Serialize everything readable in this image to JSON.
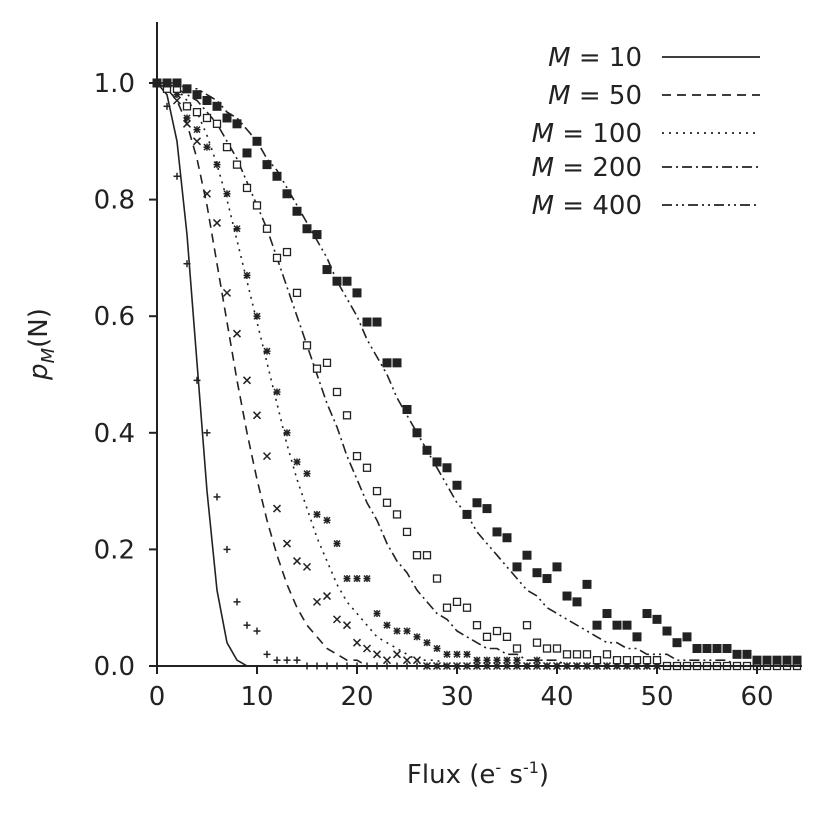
{
  "chart_data": {
    "type": "line",
    "xlabel": "Flux (e",
    "xlabel_sup1": "-",
    "xlabel_mid": " s",
    "xlabel_sup2": "-1",
    "xlabel_end": ")",
    "ylabel_p": "p",
    "ylabel_sub": "M",
    "ylabel_arg": "(N)",
    "xlim": [
      -1,
      64
    ],
    "ylim": [
      0,
      1.1
    ],
    "xticks": [
      0,
      10,
      20,
      30,
      40,
      50,
      60
    ],
    "yticks": [
      "0.0",
      "0.2",
      "0.4",
      "0.6",
      "0.8",
      "1.0"
    ],
    "legend_position": "top-right",
    "x": [
      0,
      1,
      2,
      3,
      4,
      5,
      6,
      7,
      8,
      9,
      10,
      11,
      12,
      13,
      14,
      15,
      16,
      17,
      18,
      19,
      20,
      21,
      22,
      23,
      24,
      25,
      26,
      27,
      28,
      29,
      30,
      31,
      32,
      33,
      34,
      35,
      36,
      37,
      38,
      39,
      40,
      41,
      42,
      43,
      44,
      45,
      46,
      47,
      48,
      49,
      50,
      51,
      52,
      53,
      54,
      55,
      56,
      57,
      58,
      59,
      60,
      61,
      62,
      63,
      64
    ],
    "series": [
      {
        "name": "M = 10",
        "legend_var": "M",
        "legend_rest": " = 10",
        "line_style": "solid",
        "marker": "plus",
        "curve": [
          1.0,
          0.98,
          0.9,
          0.74,
          0.52,
          0.3,
          0.13,
          0.04,
          0.01,
          0.0,
          0.0,
          0.0,
          0.0,
          0.0,
          0.0,
          0.0,
          0.0,
          0.0,
          0.0,
          0.0,
          0.0,
          0.0,
          0.0,
          0.0,
          0.0,
          0.0,
          0.0,
          0.0,
          0.0,
          0.0,
          0.0,
          0.0,
          0.0,
          0.0,
          0.0,
          0.0,
          0.0,
          0.0,
          0.0,
          0.0,
          0.0,
          0.0,
          0.0,
          0.0,
          0.0,
          0.0,
          0.0,
          0.0,
          0.0,
          0.0,
          0.0,
          0.0,
          0.0,
          0.0,
          0.0,
          0.0,
          0.0,
          0.0,
          0.0,
          0.0,
          0.0,
          0.0,
          0.0,
          0.0,
          0.0
        ],
        "points": [
          1.0,
          0.96,
          0.84,
          0.69,
          0.49,
          0.4,
          0.29,
          0.2,
          0.11,
          0.07,
          0.06,
          0.02,
          0.01,
          0.01,
          0.01,
          0.0,
          0.0,
          0.0,
          0.0,
          0.0,
          0.0,
          0.0,
          0.0,
          0.0,
          0.0,
          0.0,
          0.0,
          0.0,
          0.0,
          0.0,
          0.0,
          0.0,
          0.0,
          0.0,
          0.0,
          0.0,
          0.0,
          0.0,
          0.0,
          0.0,
          0.0,
          0.0,
          0.0,
          0.0,
          0.0,
          0.0,
          0.0,
          0.0,
          0.0,
          0.0,
          0.0,
          0.0,
          0.0,
          0.0,
          0.0,
          0.0,
          0.0,
          0.0,
          0.0,
          0.0,
          0.0,
          0.0,
          0.0,
          0.0,
          0.0
        ]
      },
      {
        "name": "M = 50",
        "legend_var": "M",
        "legend_rest": " = 50",
        "line_style": "dashed",
        "marker": "x",
        "curve": [
          1.0,
          0.99,
          0.97,
          0.93,
          0.87,
          0.79,
          0.69,
          0.59,
          0.49,
          0.4,
          0.32,
          0.25,
          0.19,
          0.14,
          0.1,
          0.07,
          0.05,
          0.03,
          0.02,
          0.01,
          0.01,
          0.0,
          0.0,
          0.0,
          0.0,
          0.0,
          0.0,
          0.0,
          0.0,
          0.0,
          0.0,
          0.0,
          0.0,
          0.0,
          0.0,
          0.0,
          0.0,
          0.0,
          0.0,
          0.0,
          0.0,
          0.0,
          0.0,
          0.0,
          0.0,
          0.0,
          0.0,
          0.0,
          0.0,
          0.0,
          0.0,
          0.0,
          0.0,
          0.0,
          0.0,
          0.0,
          0.0,
          0.0,
          0.0,
          0.0,
          0.0,
          0.0,
          0.0,
          0.0,
          0.0
        ],
        "points": [
          1.0,
          0.99,
          0.97,
          0.93,
          0.9,
          0.81,
          0.76,
          0.64,
          0.57,
          0.49,
          0.43,
          0.36,
          0.27,
          0.21,
          0.18,
          0.17,
          0.11,
          0.12,
          0.08,
          0.07,
          0.04,
          0.03,
          0.02,
          0.01,
          0.02,
          0.01,
          0.01,
          0.0,
          0.0,
          0.0,
          0.0,
          0.0,
          0.0,
          0.0,
          0.0,
          0.0,
          0.0,
          0.0,
          0.0,
          0.0,
          0.0,
          0.0,
          0.0,
          0.0,
          0.0,
          0.0,
          0.0,
          0.0,
          0.0,
          0.0,
          0.0,
          0.0,
          0.0,
          0.0,
          0.0,
          0.0,
          0.0,
          0.0,
          0.0,
          0.0,
          0.0,
          0.0,
          0.0,
          0.0,
          0.0
        ]
      },
      {
        "name": "M = 100",
        "legend_var": "M",
        "legend_rest": " = 100",
        "line_style": "dotted",
        "marker": "asterisk",
        "curve": [
          1.0,
          1.0,
          0.99,
          0.97,
          0.95,
          0.91,
          0.86,
          0.8,
          0.73,
          0.66,
          0.59,
          0.52,
          0.45,
          0.38,
          0.32,
          0.27,
          0.22,
          0.18,
          0.14,
          0.11,
          0.09,
          0.07,
          0.05,
          0.04,
          0.03,
          0.02,
          0.01,
          0.01,
          0.01,
          0.0,
          0.0,
          0.0,
          0.0,
          0.0,
          0.0,
          0.0,
          0.0,
          0.0,
          0.0,
          0.0,
          0.0,
          0.0,
          0.0,
          0.0,
          0.0,
          0.0,
          0.0,
          0.0,
          0.0,
          0.0,
          0.0,
          0.0,
          0.0,
          0.0,
          0.0,
          0.0,
          0.0,
          0.0,
          0.0,
          0.0,
          0.0,
          0.0,
          0.0,
          0.0,
          0.0
        ],
        "points": [
          1.0,
          0.99,
          0.98,
          0.94,
          0.92,
          0.89,
          0.86,
          0.81,
          0.75,
          0.67,
          0.6,
          0.54,
          0.47,
          0.4,
          0.35,
          0.33,
          0.26,
          0.25,
          0.21,
          0.15,
          0.15,
          0.15,
          0.09,
          0.07,
          0.06,
          0.06,
          0.05,
          0.04,
          0.03,
          0.02,
          0.02,
          0.02,
          0.01,
          0.01,
          0.01,
          0.01,
          0.01,
          0.0,
          0.01,
          0.0,
          0.0,
          0.0,
          0.0,
          0.0,
          0.0,
          0.0,
          0.0,
          0.0,
          0.0,
          0.0,
          0.0,
          0.0,
          0.0,
          0.0,
          0.0,
          0.0,
          0.0,
          0.0,
          0.0,
          0.0,
          0.0,
          0.0,
          0.0,
          0.0,
          0.0
        ]
      },
      {
        "name": "M = 200",
        "legend_var": "M",
        "legend_rest": " = 200",
        "line_style": "dashdot",
        "marker": "open-square",
        "curve": [
          1.0,
          1.0,
          0.99,
          0.98,
          0.97,
          0.95,
          0.93,
          0.9,
          0.87,
          0.83,
          0.79,
          0.75,
          0.7,
          0.65,
          0.6,
          0.55,
          0.5,
          0.45,
          0.41,
          0.36,
          0.32,
          0.28,
          0.25,
          0.21,
          0.18,
          0.16,
          0.13,
          0.11,
          0.09,
          0.08,
          0.06,
          0.05,
          0.04,
          0.03,
          0.03,
          0.02,
          0.02,
          0.01,
          0.01,
          0.01,
          0.01,
          0.0,
          0.0,
          0.0,
          0.0,
          0.0,
          0.0,
          0.0,
          0.0,
          0.0,
          0.0,
          0.0,
          0.0,
          0.0,
          0.0,
          0.0,
          0.0,
          0.0,
          0.0,
          0.0,
          0.0,
          0.0,
          0.0,
          0.0,
          0.0
        ],
        "points": [
          1.0,
          0.99,
          0.99,
          0.96,
          0.95,
          0.94,
          0.93,
          0.89,
          0.86,
          0.82,
          0.79,
          0.75,
          0.7,
          0.71,
          0.64,
          0.55,
          0.51,
          0.52,
          0.47,
          0.43,
          0.36,
          0.34,
          0.3,
          0.28,
          0.26,
          0.23,
          0.19,
          0.19,
          0.15,
          0.1,
          0.11,
          0.1,
          0.07,
          0.05,
          0.06,
          0.05,
          0.03,
          0.07,
          0.04,
          0.03,
          0.03,
          0.02,
          0.02,
          0.02,
          0.01,
          0.02,
          0.01,
          0.01,
          0.01,
          0.01,
          0.01,
          0.0,
          0.0,
          0.0,
          0.0,
          0.0,
          0.0,
          0.0,
          0.0,
          0.0,
          0.0,
          0.0,
          0.0,
          0.0,
          0.0
        ]
      },
      {
        "name": "M = 400",
        "legend_var": "M",
        "legend_rest": " = 400",
        "line_style": "dashdotdot",
        "marker": "filled-square",
        "curve": [
          1.0,
          1.0,
          1.0,
          0.99,
          0.99,
          0.98,
          0.97,
          0.95,
          0.94,
          0.92,
          0.9,
          0.87,
          0.85,
          0.82,
          0.79,
          0.76,
          0.73,
          0.7,
          0.66,
          0.63,
          0.6,
          0.56,
          0.53,
          0.5,
          0.46,
          0.43,
          0.4,
          0.37,
          0.34,
          0.31,
          0.28,
          0.26,
          0.23,
          0.21,
          0.19,
          0.17,
          0.15,
          0.13,
          0.12,
          0.1,
          0.09,
          0.08,
          0.07,
          0.06,
          0.05,
          0.04,
          0.04,
          0.03,
          0.03,
          0.02,
          0.02,
          0.02,
          0.01,
          0.01,
          0.01,
          0.01,
          0.01,
          0.01,
          0.0,
          0.0,
          0.0,
          0.0,
          0.0,
          0.0,
          0.0
        ],
        "points": [
          1.0,
          1.0,
          1.0,
          0.99,
          0.98,
          0.97,
          0.96,
          0.94,
          0.93,
          0.88,
          0.9,
          0.86,
          0.84,
          0.81,
          0.78,
          0.75,
          0.74,
          0.68,
          0.66,
          0.66,
          0.64,
          0.59,
          0.59,
          0.52,
          0.52,
          0.44,
          0.4,
          0.37,
          0.35,
          0.34,
          0.31,
          0.26,
          0.28,
          0.27,
          0.23,
          0.22,
          0.17,
          0.19,
          0.16,
          0.15,
          0.17,
          0.12,
          0.11,
          0.14,
          0.07,
          0.09,
          0.07,
          0.07,
          0.05,
          0.09,
          0.08,
          0.06,
          0.04,
          0.05,
          0.03,
          0.03,
          0.03,
          0.03,
          0.02,
          0.02,
          0.01,
          0.01,
          0.01,
          0.01,
          0.01
        ]
      }
    ]
  }
}
